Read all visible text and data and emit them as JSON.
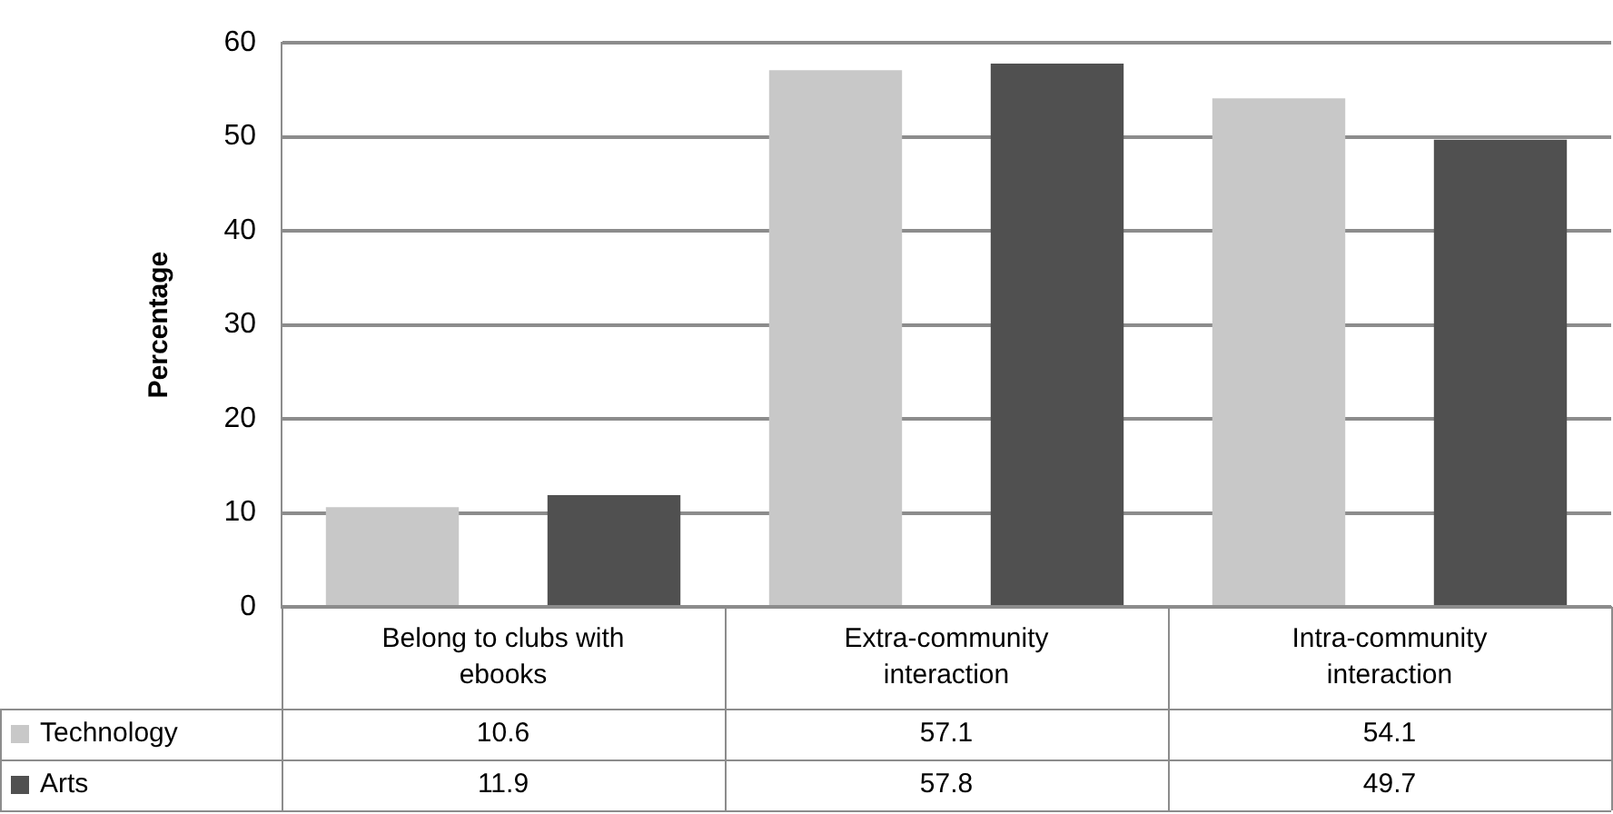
{
  "chart_data": {
    "type": "bar",
    "ylabel": "Percentage",
    "categories": [
      "Belong to clubs with ebooks",
      "Extra-community interaction",
      "Intra-community interaction"
    ],
    "series": [
      {
        "name": "Technology",
        "color": "#c8c8c8",
        "values": [
          10.6,
          57.1,
          54.1
        ]
      },
      {
        "name": "Arts",
        "color": "#505050",
        "values": [
          11.9,
          57.8,
          49.7
        ]
      }
    ],
    "ylim": [
      0,
      60
    ],
    "yticks": [
      0,
      10,
      20,
      30,
      40,
      50,
      60
    ],
    "grid": "y",
    "legend": "bottom",
    "data_labels": true
  }
}
